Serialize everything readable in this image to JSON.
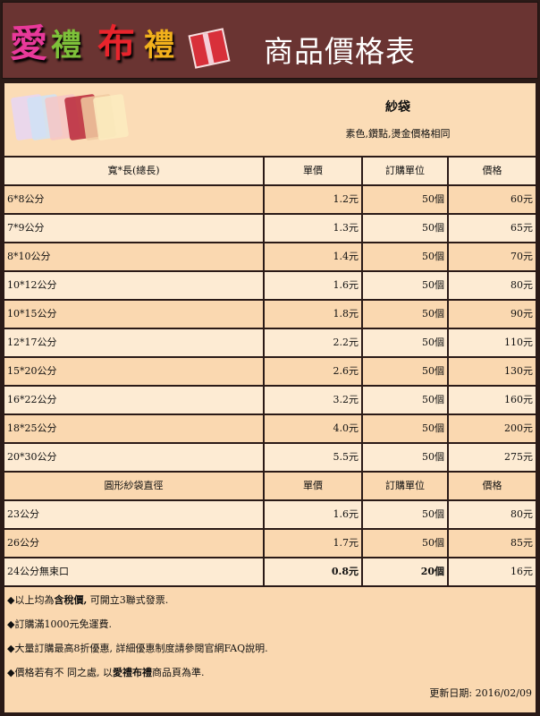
{
  "header": {
    "logo_text": "愛禮布禮",
    "title": "商品價格表"
  },
  "product": {
    "name": "紗袋",
    "subtitle": "素色,鑽點,燙金價格相同"
  },
  "table1": {
    "headers": [
      "寬*長(總長)",
      "單價",
      "訂購單位",
      "價格"
    ],
    "rows": [
      [
        "6*8公分",
        "1.2元",
        "50個",
        "60元"
      ],
      [
        "7*9公分",
        "1.3元",
        "50個",
        "65元"
      ],
      [
        "8*10公分",
        "1.4元",
        "50個",
        "70元"
      ],
      [
        "10*12公分",
        "1.6元",
        "50個",
        "80元"
      ],
      [
        "10*15公分",
        "1.8元",
        "50個",
        "90元"
      ],
      [
        "12*17公分",
        "2.2元",
        "50個",
        "110元"
      ],
      [
        "15*20公分",
        "2.6元",
        "50個",
        "130元"
      ],
      [
        "16*22公分",
        "3.2元",
        "50個",
        "160元"
      ],
      [
        "18*25公分",
        "4.0元",
        "50個",
        "200元"
      ],
      [
        "20*30公分",
        "5.5元",
        "50個",
        "275元"
      ]
    ]
  },
  "table2": {
    "headers": [
      "圓形紗袋直徑",
      "單價",
      "訂購單位",
      "價格"
    ],
    "rows": [
      [
        "23公分",
        "1.6元",
        "50個",
        "80元"
      ],
      [
        "26公分",
        "1.7元",
        "50個",
        "85元"
      ],
      [
        "24公分無束口",
        "0.8元",
        "20個",
        "16元"
      ]
    ]
  },
  "notes": [
    {
      "pre": "◆以上均為",
      "bold": "含稅價,",
      "post": " 可開立3聯式發票."
    },
    {
      "pre": "◆訂購滿1000元免運費.",
      "bold": "",
      "post": ""
    },
    {
      "pre": "◆大量訂購最高8折優惠,",
      "bold": "",
      "post": " 詳細優惠制度請參閱官網FAQ說明."
    },
    {
      "pre": "◆價格若有不 同之處, 以",
      "bold": "愛禮布禮",
      "post": "商品頁為準."
    }
  ],
  "updated": "更新日期: 2016/02/09",
  "colors": {
    "header_bg": "#6a3432",
    "row_light": "#fdebd3",
    "row_dark": "#fad8b0"
  }
}
